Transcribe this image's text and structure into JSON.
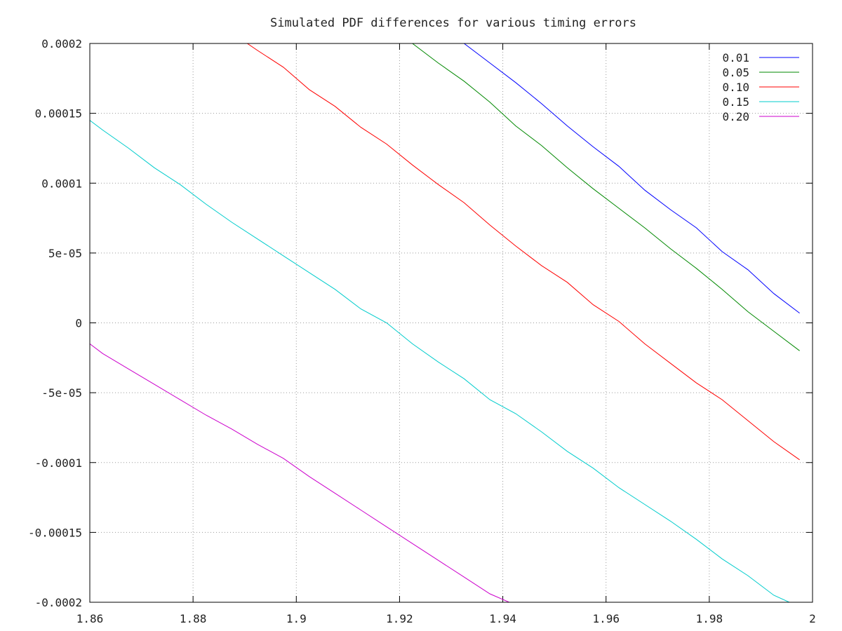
{
  "chart_data": {
    "type": "line",
    "title": "Simulated PDF differences for various timing errors",
    "xlabel": "",
    "ylabel": "",
    "xlim": [
      1.86,
      2.0
    ],
    "ylim": [
      -0.0002,
      0.0002
    ],
    "grid": true,
    "legend_position": "top-right",
    "x_ticks": [
      {
        "value": 1.86,
        "label": "1.86"
      },
      {
        "value": 1.88,
        "label": "1.88"
      },
      {
        "value": 1.9,
        "label": "1.9"
      },
      {
        "value": 1.92,
        "label": "1.92"
      },
      {
        "value": 1.94,
        "label": "1.94"
      },
      {
        "value": 1.96,
        "label": "1.96"
      },
      {
        "value": 1.98,
        "label": "1.98"
      },
      {
        "value": 2.0,
        "label": "2"
      }
    ],
    "y_ticks": [
      {
        "value": 0.0002,
        "label": "0.0002"
      },
      {
        "value": 0.00015,
        "label": "0.00015"
      },
      {
        "value": 0.0001,
        "label": "0.0001"
      },
      {
        "value": 5e-05,
        "label": "5e-05"
      },
      {
        "value": 0,
        "label": "0"
      },
      {
        "value": -5e-05,
        "label": "-5e-05"
      },
      {
        "value": -0.0001,
        "label": "-0.0001"
      },
      {
        "value": -0.00015,
        "label": "-0.00015"
      },
      {
        "value": -0.0002,
        "label": "-0.0002"
      }
    ],
    "series": [
      {
        "name": "0.01",
        "color": "#0000ff",
        "x": [
          1.9325,
          1.9375,
          1.9425,
          1.9475,
          1.9525,
          1.9575,
          1.9625,
          1.9675,
          1.9725,
          1.9775,
          1.9825,
          1.9875,
          1.9925,
          1.9975
        ],
        "y": [
          0.0002,
          0.000186,
          0.000172,
          0.000157,
          0.000141,
          0.000126,
          0.000112,
          9.5e-05,
          8.1e-05,
          6.8e-05,
          5.1e-05,
          3.8e-05,
          2.1e-05,
          7e-06
        ]
      },
      {
        "name": "0.05",
        "color": "#008800",
        "x": [
          1.9225,
          1.9275,
          1.9325,
          1.9375,
          1.9425,
          1.9475,
          1.9525,
          1.9575,
          1.9625,
          1.9675,
          1.9725,
          1.9775,
          1.9825,
          1.9875,
          1.9925,
          1.9975
        ],
        "y": [
          0.0002,
          0.000186,
          0.000173,
          0.000158,
          0.000141,
          0.000127,
          0.000111,
          9.6e-05,
          8.2e-05,
          6.8e-05,
          5.3e-05,
          3.9e-05,
          2.4e-05,
          8e-06,
          -6e-06,
          -2e-05
        ]
      },
      {
        "name": "0.10",
        "color": "#ff0000",
        "x": [
          1.8905,
          1.8925,
          1.8975,
          1.9025,
          1.9075,
          1.9125,
          1.9175,
          1.9225,
          1.9275,
          1.9325,
          1.9375,
          1.9425,
          1.9475,
          1.9525,
          1.9575,
          1.9625,
          1.9675,
          1.9725,
          1.9775,
          1.9825,
          1.9875,
          1.9925,
          1.9975
        ],
        "y": [
          0.0002,
          0.000195,
          0.000183,
          0.000167,
          0.000155,
          0.00014,
          0.000128,
          0.000113,
          9.9e-05,
          8.6e-05,
          7e-05,
          5.5e-05,
          4.1e-05,
          2.9e-05,
          1.3e-05,
          1e-06,
          -1.5e-05,
          -2.9e-05,
          -4.3e-05,
          -5.5e-05,
          -7e-05,
          -8.5e-05,
          -9.8e-05
        ]
      },
      {
        "name": "0.15",
        "color": "#00cccc",
        "x": [
          1.86,
          1.8625,
          1.8675,
          1.8725,
          1.8775,
          1.8825,
          1.8875,
          1.8925,
          1.8975,
          1.9025,
          1.9075,
          1.9125,
          1.9175,
          1.9225,
          1.9275,
          1.9325,
          1.9375,
          1.9425,
          1.9475,
          1.9525,
          1.9575,
          1.9625,
          1.9675,
          1.9725,
          1.9775,
          1.9825,
          1.9875,
          1.9925,
          1.9955
        ],
        "y": [
          0.000145,
          0.000138,
          0.000125,
          0.000111,
          9.9e-05,
          8.5e-05,
          7.2e-05,
          6e-05,
          4.8e-05,
          3.6e-05,
          2.4e-05,
          1e-05,
          0.0,
          -1.5e-05,
          -2.8e-05,
          -4e-05,
          -5.5e-05,
          -6.5e-05,
          -7.8e-05,
          -9.2e-05,
          -0.000104,
          -0.000118,
          -0.00013,
          -0.000142,
          -0.000155,
          -0.000169,
          -0.000181,
          -0.000195,
          -0.0002
        ]
      },
      {
        "name": "0.20",
        "color": "#cc00cc",
        "x": [
          1.86,
          1.8625,
          1.8675,
          1.8725,
          1.8775,
          1.8825,
          1.8875,
          1.8925,
          1.8975,
          1.9025,
          1.9075,
          1.9125,
          1.9175,
          1.9225,
          1.9275,
          1.9325,
          1.9375,
          1.9425,
          1.9455
        ],
        "y": [
          -1.5e-05,
          -2.2e-05,
          -3.3e-05,
          -4.4e-05,
          -5.5e-05,
          -6.6e-05,
          -7.6e-05,
          -8.7e-05,
          -9.7e-05,
          -0.00011,
          -0.000122,
          -0.000134,
          -0.000146,
          -0.000158,
          -0.00017,
          -0.000182,
          -0.000194,
          -0.000202,
          -0.000206
        ]
      }
    ]
  }
}
